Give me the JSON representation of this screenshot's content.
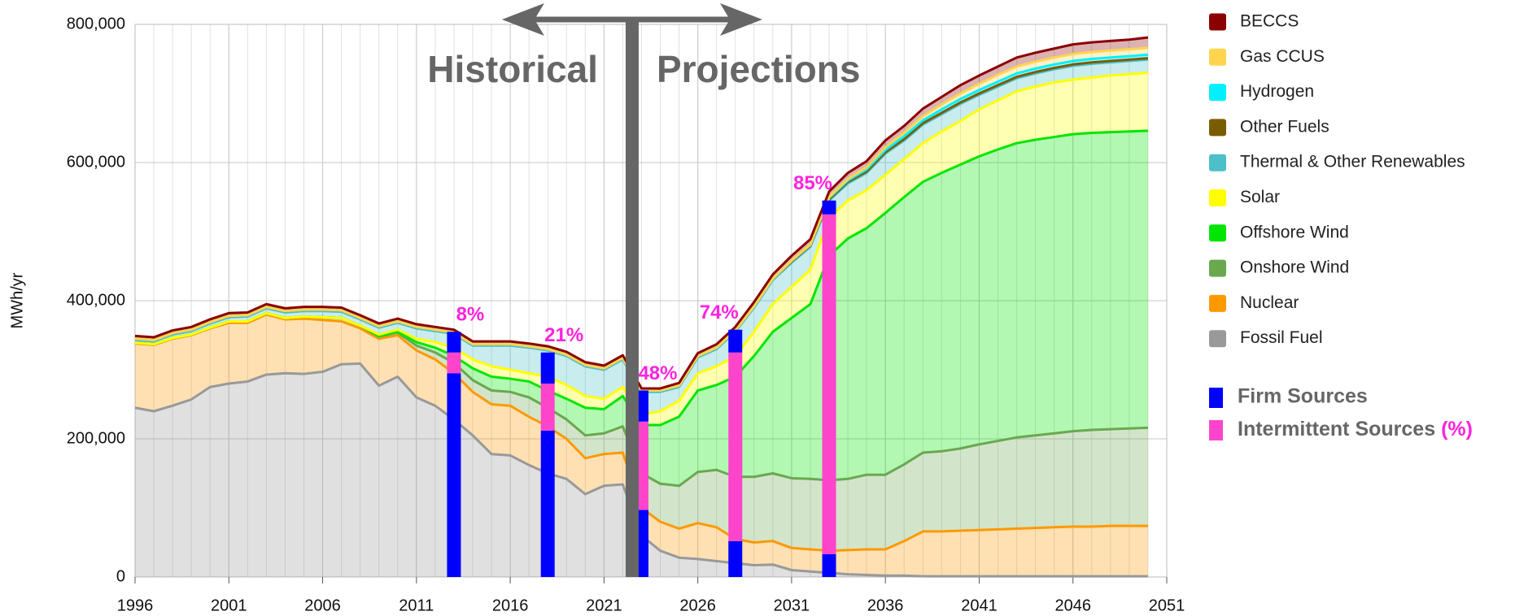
{
  "chart_data": {
    "type": "stacked_area",
    "y_label": "MWh/yr",
    "x": [
      1996,
      1997,
      1998,
      1999,
      2000,
      2001,
      2002,
      2003,
      2004,
      2005,
      2006,
      2007,
      2008,
      2009,
      2010,
      2011,
      2012,
      2013,
      2014,
      2015,
      2016,
      2017,
      2018,
      2019,
      2020,
      2021,
      2022,
      2023,
      2024,
      2025,
      2026,
      2027,
      2028,
      2029,
      2030,
      2031,
      2032,
      2033,
      2034,
      2035,
      2036,
      2037,
      2038,
      2039,
      2040,
      2041,
      2042,
      2043,
      2044,
      2045,
      2046,
      2047,
      2048,
      2049,
      2050
    ],
    "xlim": [
      1996,
      2051
    ],
    "xticks": [
      1996,
      2001,
      2006,
      2011,
      2016,
      2021,
      2026,
      2031,
      2036,
      2041,
      2046,
      2051
    ],
    "ylim": [
      0,
      800000
    ],
    "yticks": [
      0,
      {
        "value": 200000,
        "label": "200,000"
      },
      {
        "value": 400000,
        "label": "400,000"
      },
      {
        "value": 600000,
        "label": "600,000"
      },
      {
        "value": 800000,
        "label": "800,000"
      }
    ],
    "grid": true,
    "series": [
      {
        "name": "Fossil Fuel",
        "color": "#999999",
        "values": [
          245000,
          240000,
          248000,
          257000,
          275000,
          280000,
          283000,
          293000,
          295000,
          294000,
          297000,
          308000,
          309000,
          277000,
          290000,
          260000,
          248000,
          228000,
          205000,
          178000,
          176000,
          162000,
          150000,
          142000,
          120000,
          132000,
          134000,
          60000,
          38000,
          28000,
          26000,
          23000,
          20000,
          17000,
          18000,
          10000,
          8000,
          6000,
          4000,
          3000,
          2000,
          2000,
          1000,
          1000,
          1000,
          1000,
          1000,
          1000,
          1000,
          1000,
          1000,
          1000,
          1000,
          1000,
          1000
        ]
      },
      {
        "name": "Nuclear",
        "color": "#ff9900",
        "values": [
          93000,
          96000,
          97000,
          93000,
          85000,
          88000,
          85000,
          87000,
          78000,
          80000,
          75000,
          62000,
          51000,
          68000,
          60000,
          68000,
          67000,
          67000,
          63000,
          72000,
          72000,
          70000,
          68000,
          58000,
          52000,
          46000,
          46000,
          40000,
          42000,
          42000,
          52000,
          49000,
          35000,
          33000,
          34000,
          32000,
          32000,
          32000,
          35000,
          37000,
          38000,
          50000,
          65000,
          65000,
          66000,
          67000,
          68000,
          69000,
          70000,
          71000,
          72000,
          72000,
          73000,
          73000,
          73000
        ]
      },
      {
        "name": "Onshore Wind",
        "color": "#6aa84f",
        "values": [
          1000,
          1000,
          1000,
          1000,
          1000,
          2000,
          2000,
          2000,
          2000,
          3000,
          4000,
          5000,
          4000,
          3000,
          4000,
          7000,
          10000,
          15000,
          17000,
          20000,
          20000,
          28000,
          27000,
          28000,
          33000,
          30000,
          38000,
          50000,
          55000,
          62000,
          74000,
          83000,
          90000,
          95000,
          98000,
          101000,
          102000,
          102000,
          103000,
          108000,
          108000,
          111000,
          114000,
          116000,
          119000,
          124000,
          128000,
          132000,
          134000,
          136000,
          138000,
          140000,
          140000,
          141000,
          142000
        ]
      },
      {
        "name": "Offshore Wind",
        "color": "#00e600",
        "values": [
          0,
          0,
          0,
          0,
          0,
          0,
          0,
          0,
          0,
          0,
          0,
          0,
          0,
          1000,
          1000,
          5000,
          7000,
          10000,
          17000,
          20000,
          19000,
          23000,
          25000,
          30000,
          40000,
          35000,
          44000,
          70000,
          85000,
          100000,
          118000,
          123000,
          145000,
          175000,
          205000,
          232000,
          253000,
          325000,
          348000,
          357000,
          379000,
          387000,
          392000,
          403000,
          411000,
          417000,
          422000,
          426000,
          428000,
          429000,
          430000,
          430000,
          430000,
          430000,
          430000
        ]
      },
      {
        "name": "Solar",
        "color": "#ffff00",
        "values": [
          0,
          0,
          0,
          0,
          0,
          0,
          0,
          0,
          0,
          0,
          0,
          0,
          0,
          2000,
          3000,
          5000,
          8000,
          12000,
          13000,
          15000,
          13000,
          12000,
          20000,
          20000,
          17000,
          15000,
          13000,
          15000,
          20000,
          23000,
          25000,
          27000,
          30000,
          35000,
          40000,
          45000,
          50000,
          55000,
          55000,
          55000,
          55000,
          55000,
          56000,
          60000,
          63000,
          68000,
          71000,
          75000,
          77000,
          79000,
          79000,
          80000,
          82000,
          83000,
          84000
        ]
      },
      {
        "name": "Thermal & Other Renewables",
        "color": "#4dbfc9",
        "values": [
          4000,
          4000,
          5000,
          5000,
          6000,
          6000,
          7000,
          7000,
          8000,
          8000,
          9000,
          9000,
          9000,
          10000,
          10000,
          15000,
          16000,
          20000,
          20000,
          30000,
          35000,
          37000,
          38000,
          42000,
          43000,
          42000,
          40000,
          33000,
          28000,
          20000,
          23000,
          25000,
          35000,
          35000,
          35000,
          35000,
          33000,
          25000,
          25000,
          25000,
          31000,
          27000,
          27000,
          25000,
          25000,
          21000,
          20000,
          19000,
          19000,
          19000,
          20000,
          20000,
          19000,
          19000,
          19000
        ]
      },
      {
        "name": "Other Fuels",
        "color": "#7a5c00",
        "values": [
          2000,
          2000,
          2000,
          2000,
          2000,
          2000,
          2000,
          2000,
          2000,
          2000,
          2000,
          2000,
          2000,
          2000,
          2000,
          2000,
          2000,
          2000,
          2000,
          2000,
          2000,
          2000,
          2000,
          2000,
          2000,
          2000,
          2000,
          2000,
          2000,
          2000,
          2000,
          2000,
          2000,
          2000,
          2000,
          2000,
          2000,
          2000,
          2000,
          2000,
          2000,
          2000,
          2000,
          2000,
          2000,
          2000,
          2000,
          2000,
          2000,
          2000,
          2000,
          2000,
          2000,
          2000,
          2000
        ]
      },
      {
        "name": "Hydrogen",
        "color": "#00f0ff",
        "values": [
          0,
          0,
          0,
          0,
          0,
          0,
          0,
          0,
          0,
          0,
          0,
          0,
          0,
          0,
          0,
          0,
          0,
          0,
          0,
          0,
          0,
          0,
          0,
          0,
          0,
          0,
          0,
          0,
          0,
          0,
          0,
          0,
          0,
          0,
          0,
          1000,
          1000,
          2000,
          2000,
          3000,
          3000,
          4000,
          4000,
          5000,
          5000,
          5000,
          5000,
          5000,
          5000,
          5000,
          5000,
          5000,
          5000,
          5000,
          5000
        ]
      },
      {
        "name": "Gas CCUS",
        "color": "#ffd54f",
        "values": [
          0,
          0,
          0,
          0,
          0,
          0,
          0,
          0,
          0,
          0,
          0,
          0,
          0,
          0,
          0,
          0,
          0,
          0,
          0,
          0,
          0,
          0,
          0,
          0,
          0,
          0,
          0,
          0,
          0,
          0,
          0,
          0,
          0,
          0,
          0,
          0,
          0,
          1000,
          2000,
          3000,
          4000,
          5000,
          6000,
          7000,
          8000,
          9000,
          10000,
          10000,
          10000,
          10000,
          10000,
          10000,
          10000,
          10000,
          10000
        ]
      },
      {
        "name": "BECCS",
        "color": "#8b0000",
        "values": [
          4000,
          4000,
          4000,
          4000,
          4000,
          4000,
          4000,
          4000,
          4000,
          4000,
          4000,
          4000,
          4000,
          4000,
          4000,
          4000,
          4000,
          4000,
          4000,
          4000,
          4000,
          4000,
          4000,
          4000,
          4000,
          4000,
          4000,
          3000,
          3000,
          4000,
          4000,
          5000,
          5000,
          6000,
          6000,
          7000,
          8000,
          8000,
          9000,
          9000,
          10000,
          10000,
          11000,
          11000,
          12000,
          12000,
          12000,
          13000,
          13000,
          13000,
          14000,
          14000,
          14000,
          14000,
          15000
        ]
      }
    ],
    "bars": {
      "x": [
        2013,
        2018,
        2023,
        2028,
        2033
      ],
      "firm_lower": [
        295000,
        212000,
        97000,
        52000,
        33000
      ],
      "intermittent": [
        30000,
        68000,
        128000,
        273000,
        492000
      ],
      "firm_upper": [
        30000,
        45000,
        45000,
        33000,
        20000
      ],
      "share": [
        8,
        21,
        48,
        74,
        85
      ],
      "value_labels": [
        "8%",
        "21%",
        "48%",
        "74%",
        "85%"
      ],
      "firm_color": "#0000ff",
      "intermittent_color": "#ff44cc"
    },
    "divider": 2022.5,
    "annotations": {
      "left": "Historical",
      "right": "Projections"
    },
    "legend_extra": {
      "firm": "Firm Sources",
      "intermittent": "Intermittent Sources",
      "percent": "(%)"
    }
  }
}
